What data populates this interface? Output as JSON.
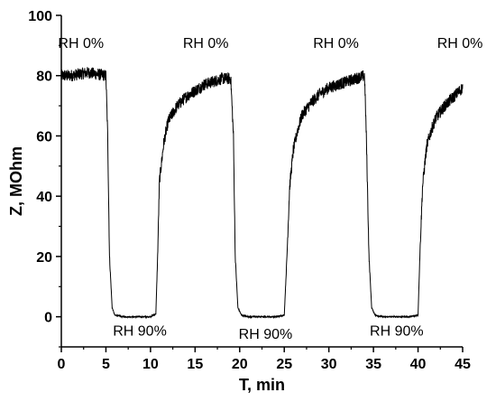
{
  "chart_data": {
    "type": "line",
    "title": "",
    "xlabel": "T, min",
    "ylabel": "Z, MOhm",
    "xlim": [
      0,
      45
    ],
    "ylim": [
      -10,
      100
    ],
    "xticks": [
      0,
      5,
      10,
      15,
      20,
      25,
      30,
      35,
      40,
      45
    ],
    "yticks": [
      0,
      20,
      40,
      60,
      80,
      100
    ],
    "grid": false,
    "legend": "none",
    "line_color": "#000000",
    "series": [
      {
        "x": [
          0,
          1,
          2,
          3,
          4,
          5,
          5.2,
          5.4,
          5.7,
          6,
          7,
          8,
          9,
          10,
          10.6,
          10.8,
          11,
          11.5,
          12,
          13,
          14,
          15,
          16,
          17,
          18,
          19,
          19.3,
          19.5,
          19.8,
          20.2,
          21,
          22,
          23,
          24,
          25,
          25.3,
          25.6,
          26,
          26.5,
          27,
          28,
          29,
          30,
          31,
          32,
          33,
          34,
          34.2,
          34.5,
          34.8,
          35.2,
          36,
          37,
          38,
          39,
          40,
          40.2,
          40.5,
          40.8,
          41,
          41.5,
          42,
          43,
          44,
          45
        ],
        "y": [
          80,
          80,
          80.5,
          81,
          80.5,
          80,
          60,
          20,
          3,
          0.5,
          0,
          0,
          0,
          0,
          1,
          20,
          45,
          58,
          65,
          70,
          73,
          75,
          77,
          78,
          79,
          79,
          60,
          20,
          3,
          0.5,
          0,
          0,
          0,
          0,
          0.5,
          20,
          43,
          55,
          62,
          67,
          71,
          74,
          76,
          77,
          78,
          79,
          80,
          60,
          20,
          3,
          0.5,
          0,
          0,
          0,
          0,
          0.5,
          20,
          43,
          52,
          57,
          62,
          66,
          70,
          73,
          76
        ]
      }
    ],
    "annotations": [
      {
        "text": "RH 0%",
        "x": 2.2,
        "y": 91
      },
      {
        "text": "RH 0%",
        "x": 16.2,
        "y": 91
      },
      {
        "text": "RH 0%",
        "x": 30.8,
        "y": 91
      },
      {
        "text": "RH 0%",
        "x": 44.7,
        "y": 91
      },
      {
        "text": "RH 90%",
        "x": 8.8,
        "y": -4.5
      },
      {
        "text": "RH 90%",
        "x": 22.9,
        "y": -5.5
      },
      {
        "text": "RH 90%",
        "x": 37.6,
        "y": -4.5
      }
    ]
  }
}
